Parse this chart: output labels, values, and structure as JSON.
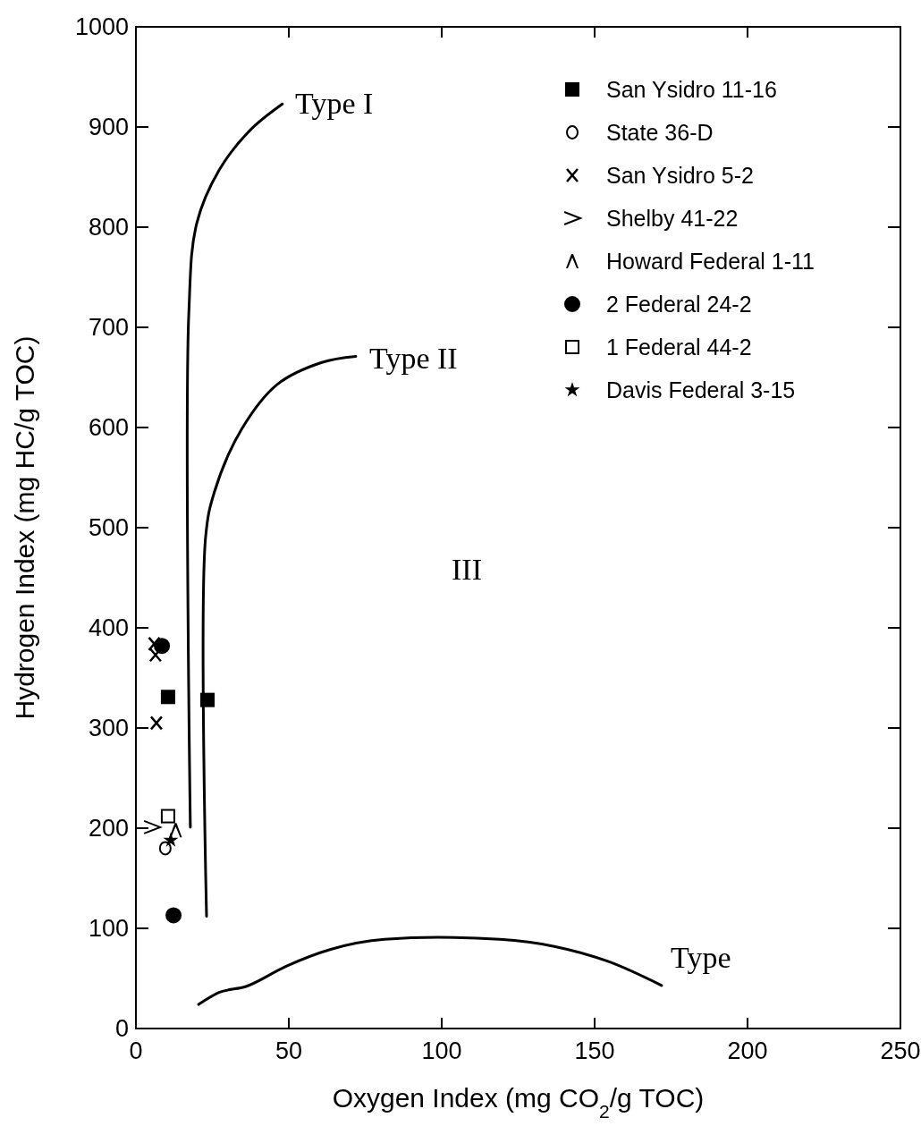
{
  "chart_data": {
    "type": "scatter",
    "xlabel": "Oxygen Index (mg CO$_{2}$/g TOC)",
    "ylabel": "Hydrogen Index (mg HC/g TOC)",
    "xlim": [
      0,
      250
    ],
    "xticks": [
      0,
      50,
      100,
      150,
      200,
      250
    ],
    "ylim": [
      0,
      1000
    ],
    "yticks": [
      0,
      100,
      200,
      300,
      400,
      500,
      600,
      700,
      800,
      900,
      1000
    ],
    "grid": false,
    "legend": "top right",
    "series": [
      {
        "name": "San Ysidro 11-16",
        "color": "#000000",
        "marker": "square",
        "x": [
          10.5,
          23.4
        ],
        "values": [
          331,
          328
        ]
      },
      {
        "name": "State 36-D",
        "color": "#000000",
        "marker": "circle",
        "x": [
          9.6
        ],
        "values": [
          180
        ]
      },
      {
        "name": "San Ysidro 5-2",
        "color": "#000000",
        "marker": "cross",
        "x": [
          6.0,
          6.4,
          6.7
        ],
        "values": [
          384,
          373,
          305
        ]
      },
      {
        "name": "Shelby 41-22",
        "color": "#000000",
        "x": [
          5.3
        ],
        "values": [
          201
        ]
      },
      {
        "name": "Howard Federal 1-11",
        "color": "#000000",
        "marker": "triangle",
        "x": [
          13
        ],
        "values": [
          198
        ]
      },
      {
        "name": "2 Federal 24-2",
        "color": "#000000",
        "marker": "circle",
        "x": [
          8.5,
          12.3
        ],
        "values": [
          382,
          113
        ]
      },
      {
        "name": "1 Federal 44-2",
        "color": "#000000",
        "marker": "square",
        "x": [
          10.5
        ],
        "values": [
          212
        ]
      },
      {
        "name": "Davis Federal 3-15",
        "color": "#000000",
        "marker": "star",
        "x": [
          11.4
        ],
        "values": [
          188
        ]
      },
      {
        "type": "line",
        "color": "#000000",
        "marker": "none",
        "x": [
          17.8,
          17.3,
          19.9,
          27.2,
          37.4,
          47.9
        ],
        "values": [
          201,
          714,
          804,
          857,
          897,
          923
        ]
      },
      {
        "type": "line",
        "color": "#000000",
        "marker": "none",
        "x": [
          23.1,
          22.8,
          25.7,
          34.5,
          46.2,
          60.8,
          71.9
        ],
        "values": [
          112,
          491,
          536,
          598,
          643,
          665,
          671
        ]
      },
      {
        "type": "line",
        "color": "#000000",
        "marker": "none",
        "x": [
          20.5,
          27.2,
          36,
          49,
          63.7,
          81.3,
          98.8,
          119,
          136.8,
          154.4,
          171.9
        ],
        "values": [
          24,
          36,
          42,
          62,
          79,
          89,
          91,
          89,
          82,
          67,
          43
        ]
      }
    ],
    "annotations": [
      "Type I",
      "Type II",
      "III",
      "Type"
    ]
  }
}
